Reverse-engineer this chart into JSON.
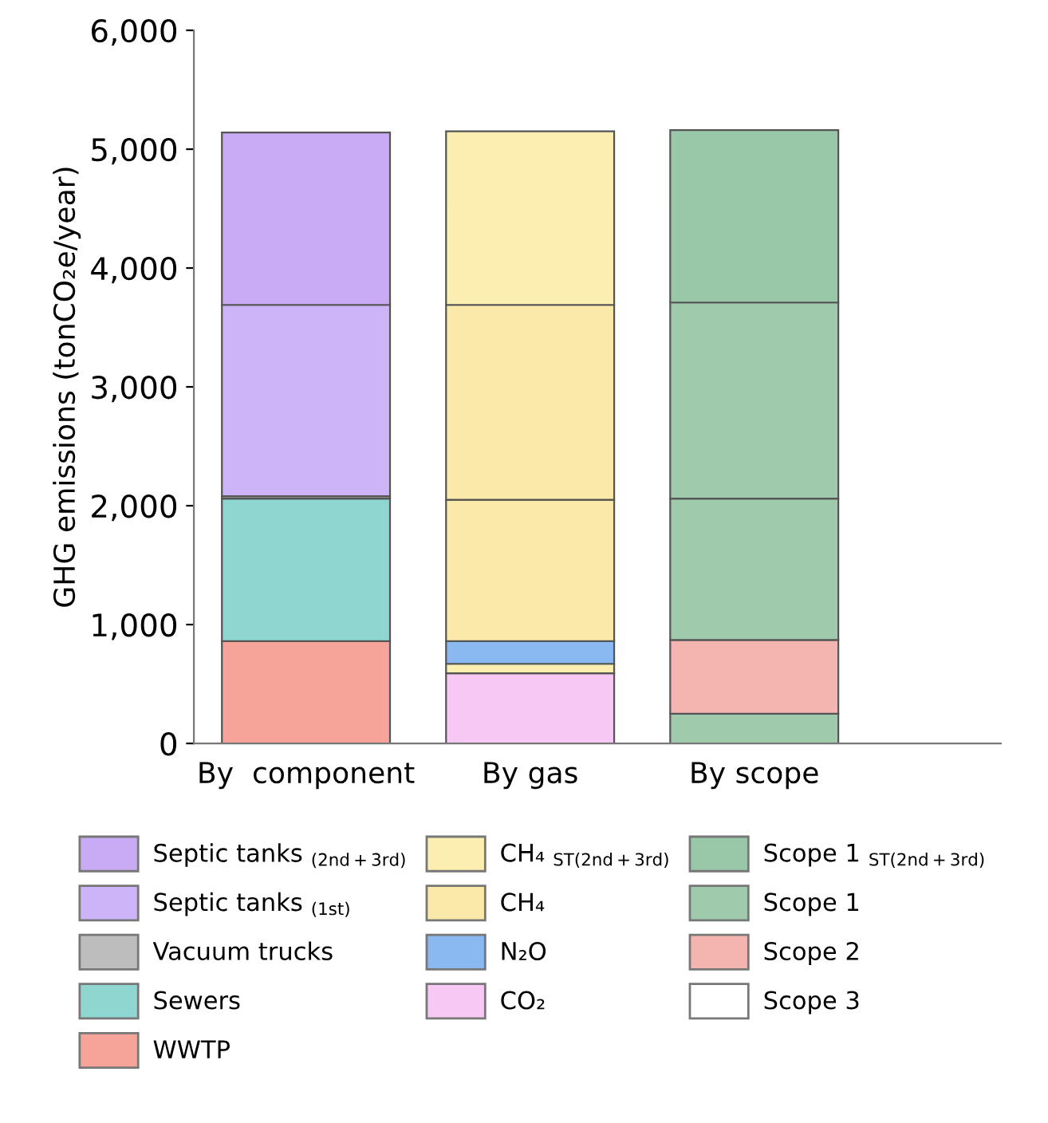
{
  "chart_data": {
    "type": "bar",
    "stacked": true,
    "ylabel": "GHG emissions (tonCO₂e/year)",
    "categories": [
      "By  component",
      "By gas",
      "By scope"
    ],
    "ylim": [
      0,
      6000
    ],
    "yticks": [
      {
        "value": 0,
        "label": "0"
      },
      {
        "value": 1000,
        "label": "1,000"
      },
      {
        "value": 2000,
        "label": "2,000"
      },
      {
        "value": 3000,
        "label": "3,000"
      },
      {
        "value": 4000,
        "label": "4,000"
      },
      {
        "value": 5000,
        "label": "5,000"
      },
      {
        "value": 6000,
        "label": "6,000"
      }
    ],
    "grid": false,
    "legend": "bottom",
    "series": [
      {
        "name": "WWTP",
        "color": "#f6a49a",
        "values": [
          860,
          null,
          null
        ]
      },
      {
        "name": "Sewers",
        "color": "#8fd6d0",
        "values": [
          1200,
          null,
          null
        ]
      },
      {
        "name": "Vacuum trucks",
        "color": "#bdbdbd",
        "values": [
          20,
          null,
          null
        ]
      },
      {
        "name": "Septic tanks $_{(1st)}$",
        "color": "#cdb4f8",
        "values": [
          1610,
          null,
          null
        ]
      },
      {
        "name": "Septic tanks $_{(2nd+3rd)}$",
        "color": "#c8aaf5",
        "values": [
          1450,
          null,
          null
        ]
      },
      {
        "name": "CO₂",
        "color": "#f8c8f5",
        "values": [
          null,
          590,
          null
        ]
      },
      {
        "color": "#fbeeb0",
        "values": [
          null,
          80,
          null
        ]
      },
      {
        "name": "N₂O",
        "color": "#8ab8f0",
        "values": [
          null,
          190,
          null
        ]
      },
      {
        "name": "CH₄",
        "color": "#fbe9a9",
        "values": [
          null,
          1190,
          null
        ]
      },
      {
        "color": "#fbe9a9",
        "values": [
          null,
          1640,
          null
        ]
      },
      {
        "name": "CH₄ $_{ST(2nd+3rd)}$",
        "color": "#fbeeb0",
        "values": [
          null,
          1460,
          null
        ]
      },
      {
        "name": "Scope 3",
        "color": "#ffffff",
        "values": [
          null,
          null,
          0
        ]
      },
      {
        "color": "#9fcbac",
        "values": [
          null,
          null,
          250
        ]
      },
      {
        "name": "Scope 2",
        "color": "#f4b4b0",
        "values": [
          null,
          null,
          620
        ]
      },
      {
        "name": "Scope 1",
        "color": "#9fcbac",
        "values": [
          null,
          null,
          1190
        ]
      },
      {
        "color": "#9fcbac",
        "values": [
          null,
          null,
          1650
        ]
      },
      {
        "name": "Scope 1 $_{ST(2nd+3rd)}$",
        "color": "#99c8a8",
        "values": [
          null,
          null,
          1450
        ]
      }
    ]
  }
}
